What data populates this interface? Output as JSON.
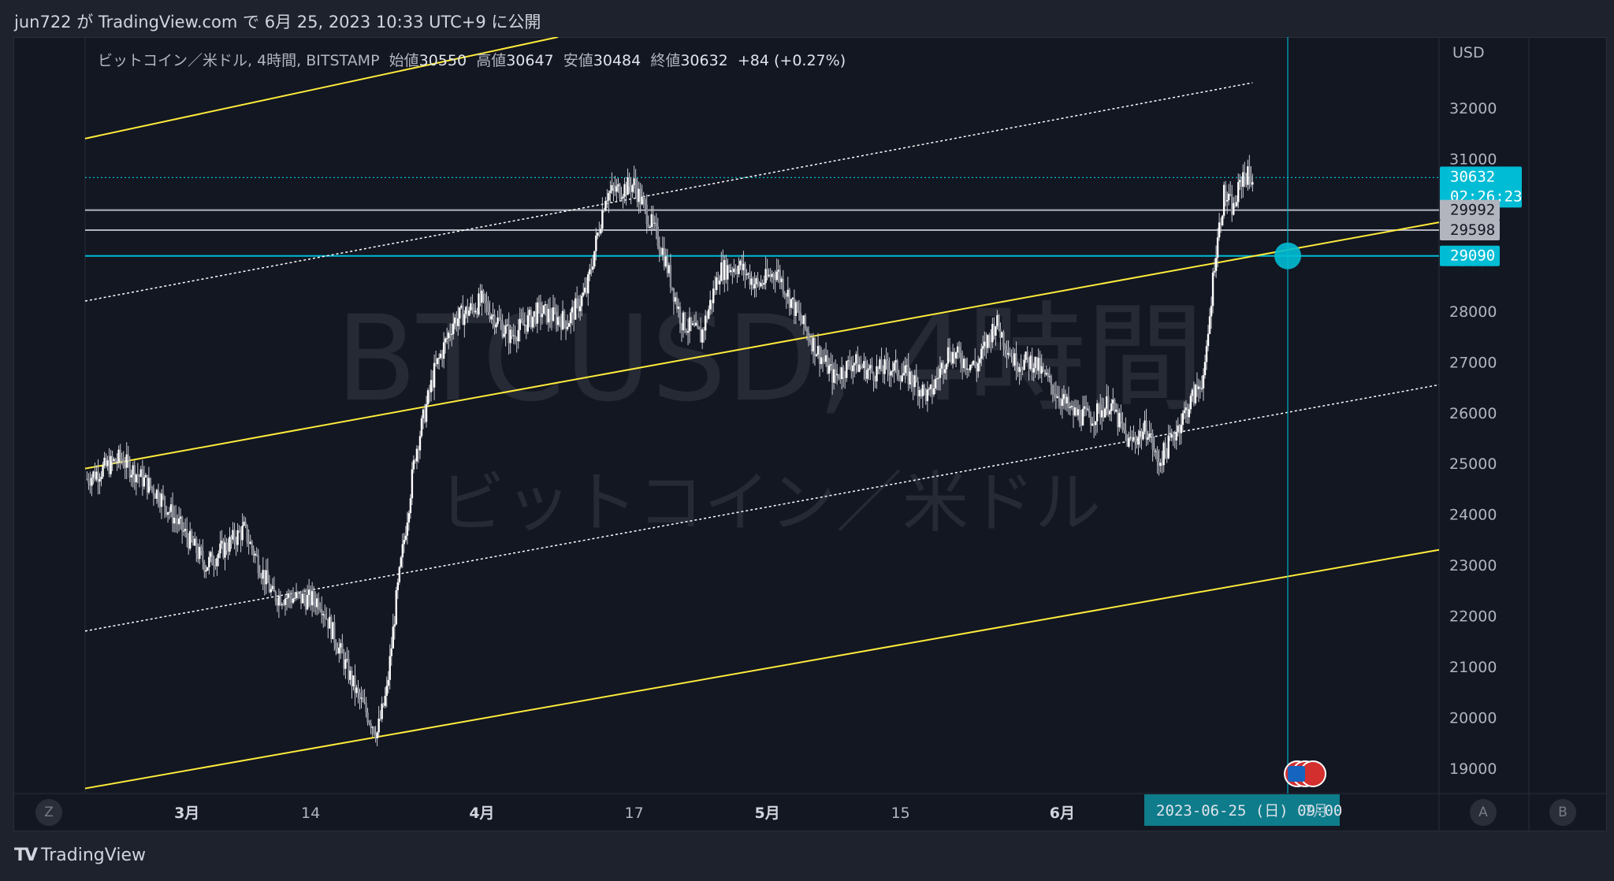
{
  "header": {
    "publish_text": "jun722 が TradingView.com で 6月 25, 2023 10:33 UTC+9 に公開"
  },
  "footer": {
    "brand": "TradingView"
  },
  "legend": {
    "symbol": "ビットコイン／米ドル, 4時間, BITSTAMP",
    "open_label": "始値",
    "open": "30550",
    "high_label": "高値",
    "high": "30647",
    "low_label": "安値",
    "low": "30484",
    "close_label": "終値",
    "close": "30632",
    "change": "+84 (+0.27%)"
  },
  "watermark": {
    "line1": "BTCUSD, 4時間",
    "line2": "ビットコイン／米ドル"
  },
  "axis_currency": "USD",
  "buttons": {
    "zoom": "Z",
    "a": "A",
    "b": "B"
  },
  "price_tags": [
    {
      "value": "30632",
      "sub": "02:26:23",
      "color": "#00bcd4"
    },
    {
      "value": "29992",
      "color": "#b2b5be"
    },
    {
      "value": "29598",
      "color": "#b2b5be"
    },
    {
      "value": "29090",
      "color": "#00bcd4"
    }
  ],
  "crosshair_date": "2023-06-25 (日)  09:00",
  "crosshair_partial": "7月",
  "chart_data": {
    "type": "candlestick",
    "title": "ビットコイン／米ドル, 4時間, BITSTAMP",
    "ylabel": "USD",
    "ylim": [
      18500,
      33400
    ],
    "y_ticks": [
      19000,
      20000,
      21000,
      22000,
      23000,
      24000,
      25000,
      26000,
      27000,
      28000,
      29000,
      30000,
      31000,
      32000
    ],
    "x_ticks": [
      "3月",
      "14",
      "4月",
      "17",
      "5月",
      "15",
      "6月",
      "14",
      "7月"
    ],
    "x_tick_days": [
      0,
      13,
      31,
      47,
      61,
      75,
      92,
      105,
      122
    ],
    "x_range_days": [
      -10.7,
      131.6
    ],
    "price_path": [
      [
        -10.5,
        24700
      ],
      [
        -7,
        25100
      ],
      [
        -3,
        24400
      ],
      [
        2,
        23000
      ],
      [
        6,
        23700
      ],
      [
        9,
        22400
      ],
      [
        14,
        22300
      ],
      [
        18,
        20400
      ],
      [
        20,
        19700
      ],
      [
        21,
        20500
      ],
      [
        22,
        22300
      ],
      [
        24,
        25200
      ],
      [
        26,
        26800
      ],
      [
        28,
        27800
      ],
      [
        31,
        28200
      ],
      [
        34,
        27500
      ],
      [
        37,
        28000
      ],
      [
        40,
        27800
      ],
      [
        42,
        28400
      ],
      [
        44,
        30300
      ],
      [
        47,
        30500
      ],
      [
        50,
        29200
      ],
      [
        52,
        27800
      ],
      [
        54,
        27500
      ],
      [
        56,
        28800
      ],
      [
        58,
        28900
      ],
      [
        60,
        28500
      ],
      [
        62,
        28800
      ],
      [
        64,
        28000
      ],
      [
        66,
        27300
      ],
      [
        68,
        26700
      ],
      [
        70,
        27000
      ],
      [
        72,
        26800
      ],
      [
        74,
        26900
      ],
      [
        76,
        26700
      ],
      [
        78,
        26300
      ],
      [
        80,
        27200
      ],
      [
        83,
        26900
      ],
      [
        85,
        27800
      ],
      [
        87,
        27000
      ],
      [
        89,
        27000
      ],
      [
        91,
        26500
      ],
      [
        93,
        26000
      ],
      [
        95,
        25900
      ],
      [
        97,
        26200
      ],
      [
        99,
        25400
      ],
      [
        101,
        25700
      ],
      [
        102,
        25000
      ],
      [
        103,
        25300
      ],
      [
        106,
        26400
      ],
      [
        107,
        26800
      ],
      [
        108,
        29000
      ],
      [
        109,
        30300
      ],
      [
        110,
        30000
      ],
      [
        111,
        30700
      ],
      [
        112,
        30632
      ]
    ],
    "last": {
      "open": 30550,
      "high": 30647,
      "low": 30484,
      "close": 30632,
      "change": 84,
      "change_pct": 0.27
    },
    "horizontal_levels": [
      {
        "price": 30632,
        "style": "dotted",
        "color": "#00bcd4"
      },
      {
        "price": 29992,
        "style": "solid",
        "color": "#b2b5be"
      },
      {
        "price": 29598,
        "style": "solid",
        "color": "#b2b5be"
      },
      {
        "price": 29090,
        "style": "solid",
        "color": "#00bcd4"
      }
    ],
    "trend_lines": [
      {
        "color": "#ffeb3b",
        "style": "solid",
        "points": [
          [
            -10.7,
            31400
          ],
          [
            39,
            33400
          ]
        ]
      },
      {
        "color": "#ffeb3b",
        "style": "solid",
        "points": [
          [
            -10.7,
            24900
          ],
          [
            131.6,
            29750
          ]
        ]
      },
      {
        "color": "#ffeb3b",
        "style": "solid",
        "points": [
          [
            -10.7,
            18600
          ],
          [
            131.6,
            23300
          ]
        ]
      },
      {
        "color": "#ffffff",
        "style": "dotted",
        "points": [
          [
            -10.7,
            28200
          ],
          [
            112,
            32500
          ]
        ]
      },
      {
        "color": "#ffffff",
        "style": "dotted",
        "points": [
          [
            -10.7,
            21700
          ],
          [
            131.6,
            26550
          ]
        ]
      }
    ],
    "crosshair": {
      "day": 115.7,
      "price": 29090
    },
    "grid": false
  }
}
